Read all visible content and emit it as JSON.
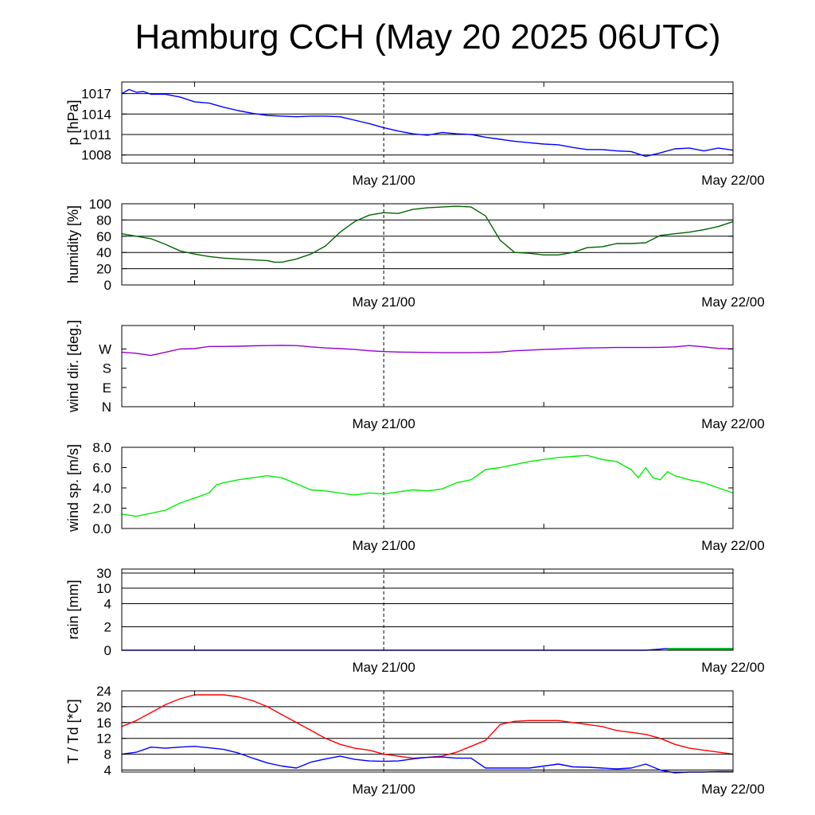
{
  "title": "Hamburg CCH (May 20 2025 06UTC)",
  "chart_data": [
    {
      "type": "line",
      "ylabel": "p [hPa]",
      "scale": "linear",
      "ylim": [
        1006.8,
        1018.7
      ],
      "yticks": [
        1008,
        1011,
        1014,
        1017
      ],
      "ytick_labels": [
        "1008",
        "1011",
        "1014",
        "1017"
      ],
      "grid": true,
      "xtick_labels": [
        "May 21/00",
        "May 22/00"
      ],
      "x_unit": "hours since May 20 06UTC",
      "xlim": [
        0,
        42
      ],
      "series": [
        {
          "color": "#0000ff",
          "x": [
            0,
            0.5,
            1,
            1.5,
            2,
            3,
            4,
            5,
            6,
            7,
            8,
            9,
            10,
            11,
            12,
            13,
            14,
            15,
            16,
            17,
            18,
            19,
            20,
            21,
            22,
            23,
            24,
            25,
            26,
            27,
            28,
            29,
            30,
            31,
            32,
            33,
            34,
            35,
            36,
            37,
            38,
            39,
            40,
            41,
            42
          ],
          "values": [
            1017.0,
            1017.6,
            1017.2,
            1017.3,
            1016.9,
            1016.9,
            1016.5,
            1015.8,
            1015.6,
            1015.0,
            1014.5,
            1014.1,
            1013.8,
            1013.7,
            1013.6,
            1013.7,
            1013.7,
            1013.6,
            1013.1,
            1012.6,
            1012.0,
            1011.5,
            1011.1,
            1010.9,
            1011.3,
            1011.1,
            1011.0,
            1010.6,
            1010.3,
            1010.0,
            1009.8,
            1009.6,
            1009.5,
            1009.1,
            1008.8,
            1008.8,
            1008.6,
            1008.5,
            1007.8,
            1008.3,
            1008.9,
            1009.0,
            1008.6,
            1009.0,
            1008.7
          ]
        }
      ]
    },
    {
      "type": "line",
      "ylabel": "humidity [%]",
      "scale": "linear",
      "ylim": [
        0,
        100
      ],
      "yticks": [
        0,
        20,
        40,
        60,
        80,
        100
      ],
      "ytick_labels": [
        "0",
        "20",
        "40",
        "60",
        "80",
        "100"
      ],
      "grid": true,
      "xtick_labels": [
        "May 21/00",
        "May 22/00"
      ],
      "x_unit": "hours since May 20 06UTC",
      "xlim": [
        0,
        42
      ],
      "series": [
        {
          "color": "#006400",
          "x": [
            0,
            1,
            2,
            3,
            4,
            5,
            6,
            7,
            8,
            9,
            10,
            10.5,
            11,
            12,
            13,
            14,
            15,
            16,
            17,
            18,
            19,
            20,
            21,
            22,
            23,
            24,
            25,
            26,
            27,
            28,
            29,
            30,
            31,
            32,
            33,
            34,
            35,
            36,
            37,
            38,
            39,
            40,
            41,
            42
          ],
          "values": [
            63,
            60,
            57,
            50,
            42,
            38,
            35,
            33,
            32,
            31,
            30,
            28,
            28,
            32,
            38,
            48,
            65,
            78,
            86,
            89,
            88,
            93,
            95,
            96,
            97,
            96,
            85,
            55,
            40,
            39,
            37,
            37,
            40,
            46,
            47,
            51,
            51,
            52,
            61,
            63,
            65,
            68,
            72,
            78
          ]
        }
      ]
    },
    {
      "type": "line",
      "ylabel": "wind dir. [deg.]",
      "scale": "linear",
      "ylim": [
        0,
        380
      ],
      "yticks": [
        0,
        90,
        180,
        270
      ],
      "ytick_labels": [
        "N",
        "E",
        "S",
        "W"
      ],
      "grid": false,
      "xtick_labels": [
        "May 21/00",
        "May 22/00"
      ],
      "x_unit": "hours since May 20 06UTC",
      "xlim": [
        0,
        42
      ],
      "series": [
        {
          "color": "#9400d3",
          "x": [
            0,
            1,
            2,
            3,
            4,
            5,
            6,
            7,
            8,
            9,
            10,
            11,
            12,
            13,
            14,
            15,
            16,
            17,
            18,
            19,
            20,
            21,
            22,
            23,
            24,
            25,
            26,
            27,
            28,
            29,
            30,
            31,
            32,
            33,
            34,
            35,
            36,
            37,
            38,
            39,
            40,
            41,
            42
          ],
          "values": [
            255,
            250,
            240,
            255,
            270,
            272,
            282,
            282,
            283,
            285,
            286,
            287,
            286,
            280,
            275,
            272,
            268,
            262,
            258,
            256,
            255,
            254,
            253,
            253,
            253,
            254,
            256,
            262,
            265,
            268,
            270,
            273,
            275,
            276,
            277,
            277,
            277,
            278,
            280,
            286,
            280,
            273,
            271
          ]
        }
      ]
    },
    {
      "type": "line",
      "ylabel": "wind sp. [m/s]",
      "scale": "linear",
      "ylim": [
        0,
        8.0
      ],
      "yticks": [
        0,
        2,
        4,
        6,
        8
      ],
      "ytick_labels": [
        "0.0",
        "2.0",
        "4.0",
        "6.0",
        "8.0"
      ],
      "grid": false,
      "xtick_labels": [
        "May 21/00",
        "May 22/00"
      ],
      "x_unit": "hours since May 20 06UTC",
      "xlim": [
        0,
        42
      ],
      "series": [
        {
          "color": "#00ee00",
          "x": [
            0,
            1,
            2,
            3,
            4,
            5,
            6,
            6.5,
            7,
            8,
            9,
            10,
            11,
            12,
            13,
            14,
            15,
            16,
            17,
            18,
            19,
            20,
            21,
            22,
            23,
            24,
            25,
            26,
            27,
            28,
            29,
            30,
            31,
            32,
            33,
            34,
            35,
            35.5,
            36,
            36.5,
            37,
            37.5,
            38,
            39,
            40,
            41,
            42
          ],
          "values": [
            1.4,
            1.2,
            1.5,
            1.8,
            2.5,
            3.0,
            3.5,
            4.3,
            4.5,
            4.8,
            5.0,
            5.2,
            5.0,
            4.4,
            3.8,
            3.7,
            3.5,
            3.3,
            3.5,
            3.4,
            3.6,
            3.8,
            3.7,
            3.9,
            4.5,
            4.8,
            5.8,
            6.0,
            6.3,
            6.6,
            6.8,
            7.0,
            7.1,
            7.2,
            6.8,
            6.6,
            5.8,
            5.0,
            6.0,
            5.0,
            4.8,
            5.6,
            5.2,
            4.8,
            4.5,
            4.0,
            3.5
          ]
        }
      ]
    },
    {
      "type": "area",
      "ylabel": "rain [mm]",
      "scale": "rain",
      "ylim": [
        0,
        30
      ],
      "yticks": [
        0,
        2,
        4,
        10,
        30
      ],
      "ytick_labels": [
        "0",
        "2",
        "4",
        "10",
        "30"
      ],
      "grid": true,
      "xtick_labels": [
        "May 21/00",
        "May 22/00"
      ],
      "x_unit": "hours since May 20 06UTC",
      "xlim": [
        0,
        42
      ],
      "series": [
        {
          "color": "#0000ff",
          "x": [
            0,
            36,
            37.5,
            42
          ],
          "values": [
            0,
            0,
            0.15,
            0.15
          ]
        },
        {
          "color": "#00cc00",
          "x": [
            37.5,
            42
          ],
          "values": [
            0.15,
            0.15
          ],
          "fill": true
        }
      ]
    },
    {
      "type": "line",
      "ylabel": "T / Td [*C]",
      "scale": "linear",
      "ylim": [
        3.5,
        24
      ],
      "yticks": [
        4,
        8,
        12,
        16,
        20,
        24
      ],
      "ytick_labels": [
        "4",
        "8",
        "12",
        "16",
        "20",
        "24"
      ],
      "grid": true,
      "xtick_labels": [
        "May 21/00",
        "May 22/00"
      ],
      "x_unit": "hours since May 20 06UTC",
      "xlim": [
        0,
        42
      ],
      "series": [
        {
          "color": "#ff0000",
          "x": [
            0,
            1,
            2,
            3,
            4,
            5,
            6,
            7,
            8,
            9,
            10,
            11,
            12,
            13,
            14,
            15,
            16,
            17,
            18,
            19,
            20,
            21,
            22,
            23,
            24,
            25,
            26,
            27,
            28,
            29,
            30,
            31,
            32,
            33,
            34,
            35,
            36,
            37,
            38,
            39,
            40,
            41,
            42
          ],
          "values": [
            15,
            16.5,
            18.5,
            20.5,
            22,
            23,
            23,
            23,
            22.5,
            21.5,
            20,
            18,
            16,
            14,
            12,
            10.5,
            9.5,
            9,
            8,
            7.5,
            7,
            7.2,
            7.5,
            8.5,
            10,
            11.5,
            15.5,
            16.3,
            16.5,
            16.5,
            16.5,
            16,
            15.5,
            15,
            14,
            13.5,
            13,
            12,
            10.5,
            9.5,
            9,
            8.5,
            8
          ]
        },
        {
          "color": "#0000ff",
          "x": [
            0,
            1,
            2,
            3,
            4,
            5,
            6,
            7,
            8,
            9,
            10,
            11,
            12,
            13,
            14,
            15,
            16,
            17,
            18,
            19,
            20,
            21,
            22,
            23,
            24,
            25,
            26,
            27,
            28,
            29,
            30,
            31,
            32,
            33,
            34,
            35,
            36,
            37,
            38,
            39,
            40,
            41,
            42
          ],
          "values": [
            8,
            8.5,
            9.8,
            9.5,
            9.8,
            10,
            9.6,
            9.2,
            8.3,
            7.0,
            5.8,
            5.0,
            4.5,
            6.0,
            6.8,
            7.5,
            6.7,
            6.3,
            6.2,
            6.3,
            6.8,
            7.2,
            7.3,
            7.0,
            7.0,
            4.5,
            4.5,
            4.5,
            4.5,
            5.0,
            5.5,
            4.8,
            4.7,
            4.5,
            4.3,
            4.5,
            5.5,
            4.0,
            3.3,
            3.5,
            3.5,
            3.6,
            3.6
          ]
        }
      ]
    }
  ]
}
